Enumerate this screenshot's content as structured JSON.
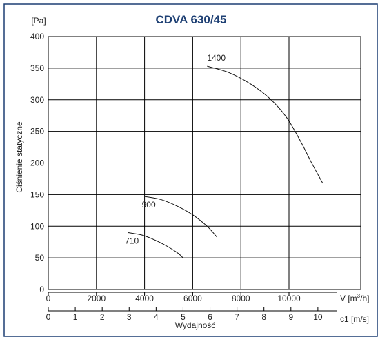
{
  "chart_data": {
    "type": "line",
    "title": "CDVA 630/45",
    "y_unit": "[Pa]",
    "ylabel": "Ciśnienie statyczne",
    "ylim": [
      0,
      400
    ],
    "y_ticks": [
      0,
      50,
      100,
      150,
      200,
      250,
      300,
      350,
      400
    ],
    "xlim": [
      0,
      13000
    ],
    "x_ticks": [
      0,
      2000,
      4000,
      6000,
      8000,
      10000
    ],
    "x_ticks_labels": [
      "0",
      "2000",
      "4000",
      "6000",
      "8000",
      "10000"
    ],
    "xlabel": "V [m³/h]",
    "xlabel_base": "V [m",
    "xlabel_sup": "3",
    "xlabel_tail": "/h]",
    "secondary_axis": {
      "label": "c1 [m/s]",
      "ticks": [
        "0",
        "1",
        "2",
        "3",
        "4",
        "5",
        "6",
        "7",
        "8",
        "9",
        "10"
      ],
      "tick_positions_m3h": [
        0,
        1120,
        2240,
        3360,
        4480,
        5600,
        6720,
        7840,
        8960,
        10080,
        11200
      ],
      "caption": "Wydajność"
    },
    "grid": true,
    "series": [
      {
        "name": "710",
        "x": [
          3300,
          3900,
          4500,
          5000,
          5400,
          5600
        ],
        "y": [
          90,
          86,
          77,
          67,
          57,
          50
        ]
      },
      {
        "name": "900",
        "x": [
          4000,
          4700,
          5400,
          6000,
          6600,
          7000
        ],
        "y": [
          147,
          142,
          131,
          118,
          100,
          83
        ]
      },
      {
        "name": "1400",
        "x": [
          6600,
          7500,
          8400,
          9200,
          9900,
          10500,
          10900,
          11400
        ],
        "y": [
          353,
          343,
          325,
          302,
          272,
          233,
          203,
          168
        ]
      }
    ]
  }
}
